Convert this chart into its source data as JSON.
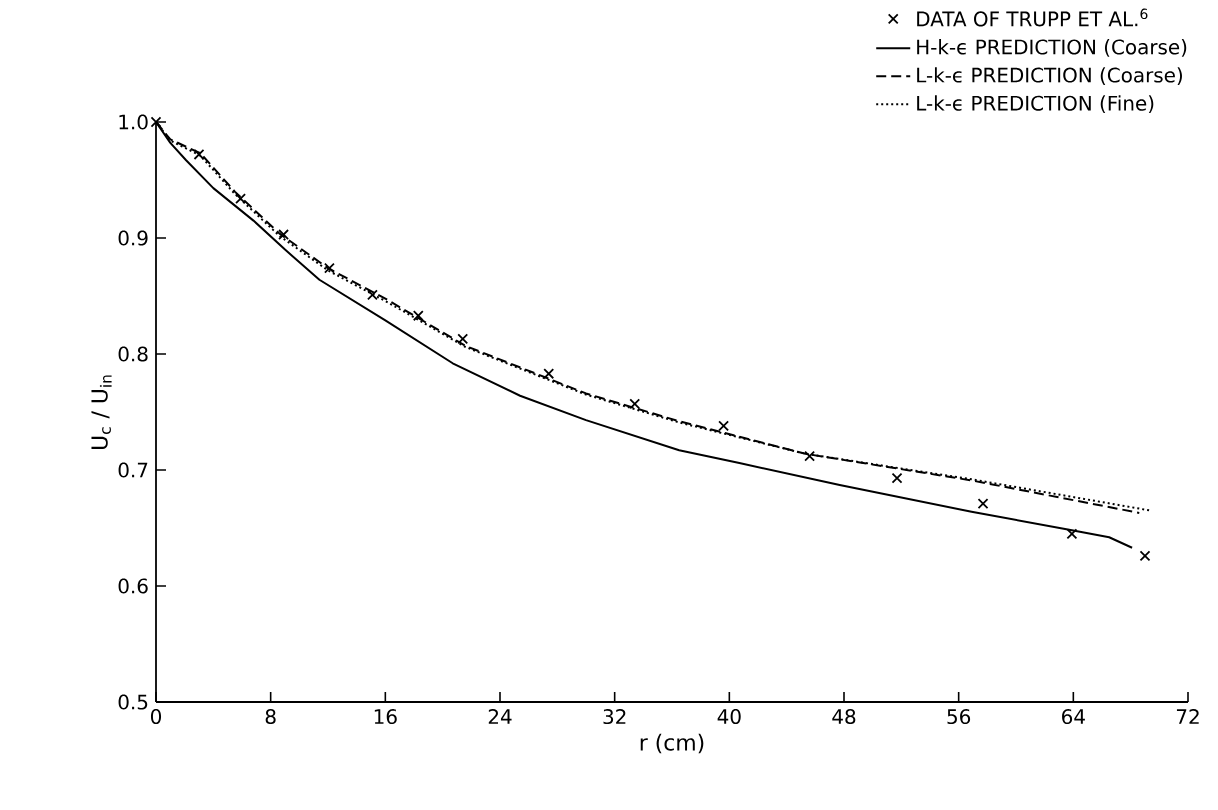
{
  "chart_data": {
    "type": "line",
    "xlabel": "r  (cm)",
    "ylabel": "U$_{c}$ / U$_{in}$",
    "xlim": [
      0,
      72
    ],
    "xticks": [
      0,
      8,
      16,
      24,
      32,
      40,
      48,
      56,
      64,
      72
    ],
    "ylim": [
      0.5,
      1.0
    ],
    "yticks": [
      0.5,
      0.6,
      0.7,
      0.8,
      0.9,
      {
        "value": 1.0,
        "label": "1.0"
      }
    ],
    "grid": false,
    "legend": "top right",
    "series": [
      {
        "name": "DATA OF TRUPP ET AL.$^{6}$",
        "type": "scatter",
        "marker": "cross",
        "color": "#000000",
        "x": [
          0,
          3,
          5.9,
          8.9,
          12.1,
          15.1,
          18.3,
          21.4,
          27.4,
          33.4,
          39.6,
          45.6,
          51.7,
          57.7,
          63.9,
          69
        ],
        "values": [
          1.0,
          0.972,
          0.934,
          0.903,
          0.874,
          0.851,
          0.833,
          0.813,
          0.783,
          0.757,
          0.738,
          0.712,
          0.693,
          0.671,
          0.645,
          0.626
        ]
      },
      {
        "name": "H-k-ϵ PREDICTION (Coarse)",
        "line_style": "solid",
        "color": "#000000",
        "x": [
          0,
          1,
          2.1,
          4,
          6.8,
          9,
          11.4,
          16,
          20.7,
          25.4,
          30,
          36.5,
          40.7,
          47.7,
          56.9,
          63.9,
          66.5,
          68.1
        ],
        "values": [
          1.0,
          0.982,
          0.967,
          0.943,
          0.915,
          0.89,
          0.864,
          0.829,
          0.792,
          0.764,
          0.743,
          0.717,
          0.706,
          0.687,
          0.664,
          0.648,
          0.642,
          0.633
        ]
      },
      {
        "name": "L-k-ϵ PREDICTION (Coarse)",
        "line_style": "dashed",
        "color": "#000000",
        "x": [
          0,
          1,
          3.1,
          5.5,
          8.6,
          12,
          16.1,
          21.6,
          30,
          36.5,
          45.3,
          56.9,
          68.6
        ],
        "values": [
          1.0,
          0.985,
          0.973,
          0.94,
          0.904,
          0.874,
          0.847,
          0.807,
          0.766,
          0.742,
          0.714,
          0.691,
          0.663
        ]
      },
      {
        "name": "L-k-ϵ PREDICTION (Fine)",
        "line_style": "dotted",
        "color": "#000000",
        "x": [
          0,
          1,
          3.1,
          5.5,
          8.6,
          12,
          16.1,
          21.6,
          30,
          36.5,
          45.3,
          56.9,
          69.4
        ],
        "values": [
          1.0,
          0.984,
          0.971,
          0.938,
          0.902,
          0.872,
          0.845,
          0.806,
          0.765,
          0.741,
          0.714,
          0.692,
          0.665
        ]
      }
    ]
  }
}
